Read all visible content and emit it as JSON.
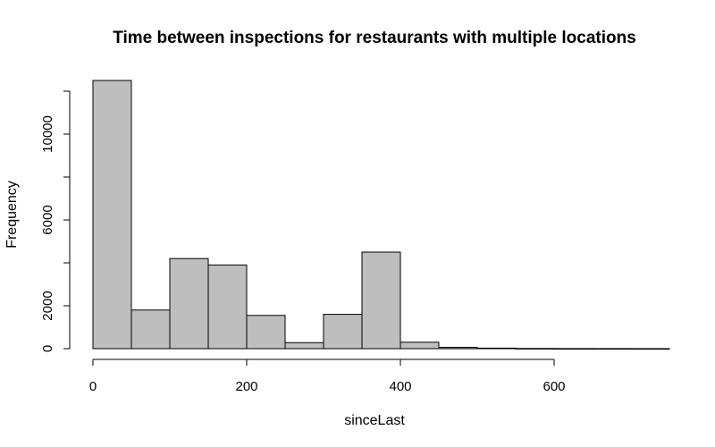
{
  "chart_data": {
    "type": "bar",
    "title": "Time between inspections for restaurants with multiple locations",
    "xlabel": "sinceLast",
    "ylabel": "Frequency",
    "bin_width": 50,
    "bins": [
      {
        "start": 0,
        "end": 50,
        "count": 12500
      },
      {
        "start": 50,
        "end": 100,
        "count": 1800
      },
      {
        "start": 100,
        "end": 150,
        "count": 4200
      },
      {
        "start": 150,
        "end": 200,
        "count": 3900
      },
      {
        "start": 200,
        "end": 250,
        "count": 1550
      },
      {
        "start": 250,
        "end": 300,
        "count": 280
      },
      {
        "start": 300,
        "end": 350,
        "count": 1600
      },
      {
        "start": 350,
        "end": 400,
        "count": 4500
      },
      {
        "start": 400,
        "end": 450,
        "count": 300
      },
      {
        "start": 450,
        "end": 500,
        "count": 60
      },
      {
        "start": 500,
        "end": 550,
        "count": 25
      },
      {
        "start": 550,
        "end": 600,
        "count": 10
      },
      {
        "start": 600,
        "end": 650,
        "count": 5
      },
      {
        "start": 650,
        "end": 700,
        "count": 3
      },
      {
        "start": 700,
        "end": 750,
        "count": 2
      }
    ],
    "xlim": [
      0,
      750
    ],
    "ylim": [
      0,
      12500
    ],
    "x_ticks": [
      0,
      200,
      400,
      600
    ],
    "y_ticks": [
      0,
      2000,
      6000,
      10000
    ],
    "grid": false,
    "bar_color": "#bebebe",
    "edge_color": "#000000"
  }
}
